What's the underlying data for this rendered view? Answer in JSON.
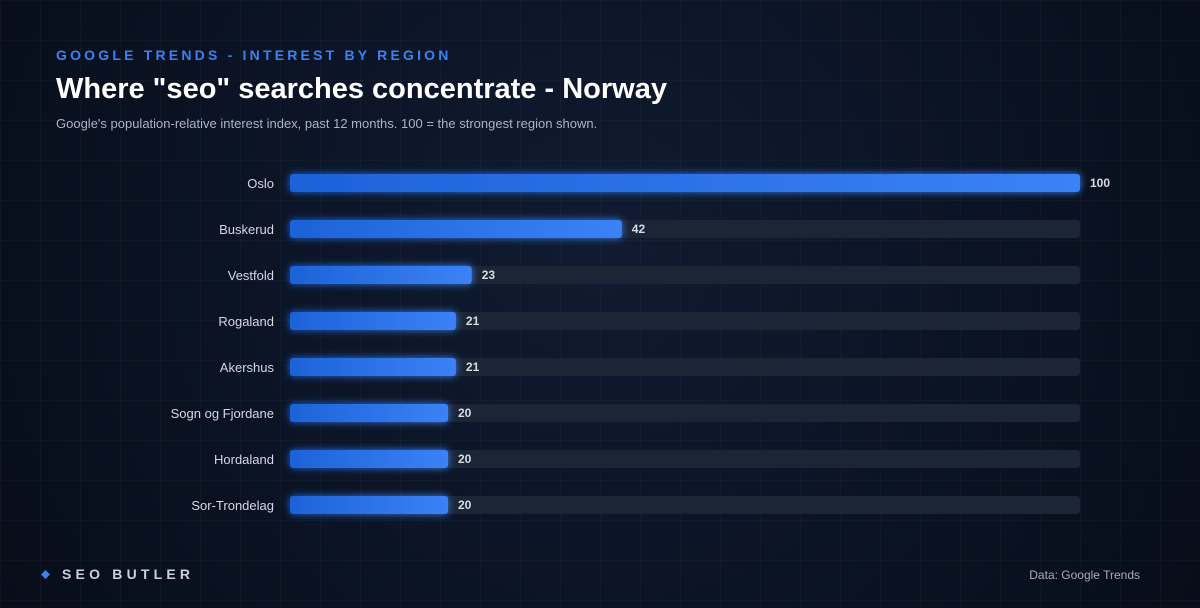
{
  "header": {
    "eyebrow": "GOOGLE TRENDS - INTEREST BY REGION",
    "title": "Where \"seo\" searches concentrate - Norway",
    "subtitle": "Google's population-relative interest index, past 12 months. 100 = the strongest region shown."
  },
  "chart_data": {
    "type": "bar",
    "orientation": "horizontal",
    "categories": [
      "Oslo",
      "Buskerud",
      "Vestfold",
      "Rogaland",
      "Akershus",
      "Sogn og Fjordane",
      "Hordaland",
      "Sor-Trondelag"
    ],
    "values": [
      100,
      42,
      23,
      21,
      21,
      20,
      20,
      20
    ],
    "xlim": [
      0,
      100
    ],
    "grid": false,
    "legend": "none"
  },
  "colors": {
    "accent": "#3b82f6",
    "bar_start": "#1d62d8",
    "bar_end": "#3b82f6",
    "track": "#1c2536",
    "background": "#0b1324"
  },
  "footer": {
    "brand_icon": "diamond-icon",
    "brand": "SEO BUTLER",
    "source": "Data: Google Trends"
  }
}
